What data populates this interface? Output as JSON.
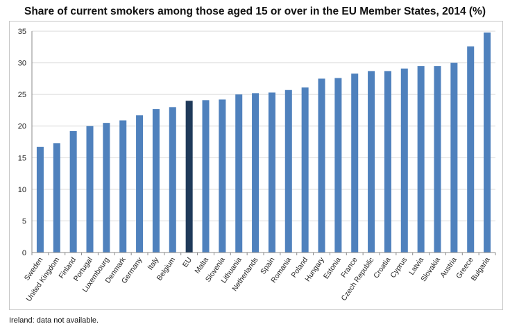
{
  "chart_data": {
    "type": "bar",
    "title": "Share of current smokers among those aged 15 or over in the EU Member States, 2014 (%)",
    "xlabel": "",
    "ylabel": "",
    "ylim": [
      0,
      35
    ],
    "yticks": [
      0,
      5,
      10,
      15,
      20,
      25,
      30,
      35
    ],
    "grid": true,
    "categories": [
      "Sweden",
      "United Kingdom",
      "Finland",
      "Portugal",
      "Luxembourg",
      "Denmark",
      "Germany",
      "Italy",
      "Belgium",
      "EU",
      "Malta",
      "Slovenia",
      "Lithuania",
      "Netherlands",
      "Spain",
      "Romania",
      "Poland",
      "Hungary",
      "Estonia",
      "France",
      "Czech Republic",
      "Croatia",
      "Cyprus",
      "Latvia",
      "Slovakia",
      "Austria",
      "Greece",
      "Bulgaria"
    ],
    "values": [
      16.7,
      17.3,
      19.2,
      20.0,
      20.5,
      20.9,
      21.7,
      22.7,
      23.0,
      24.0,
      24.1,
      24.2,
      25.0,
      25.2,
      25.3,
      25.7,
      26.1,
      27.5,
      27.6,
      28.3,
      28.7,
      28.7,
      29.1,
      29.5,
      29.5,
      30.0,
      32.6,
      34.8
    ],
    "highlight_category": "EU",
    "colors": {
      "bar": "#4f81bd",
      "highlight": "#1f3a5a",
      "grid": "#d9d9d9",
      "axis": "#888888"
    }
  },
  "footnote": "Ireland: data not available."
}
